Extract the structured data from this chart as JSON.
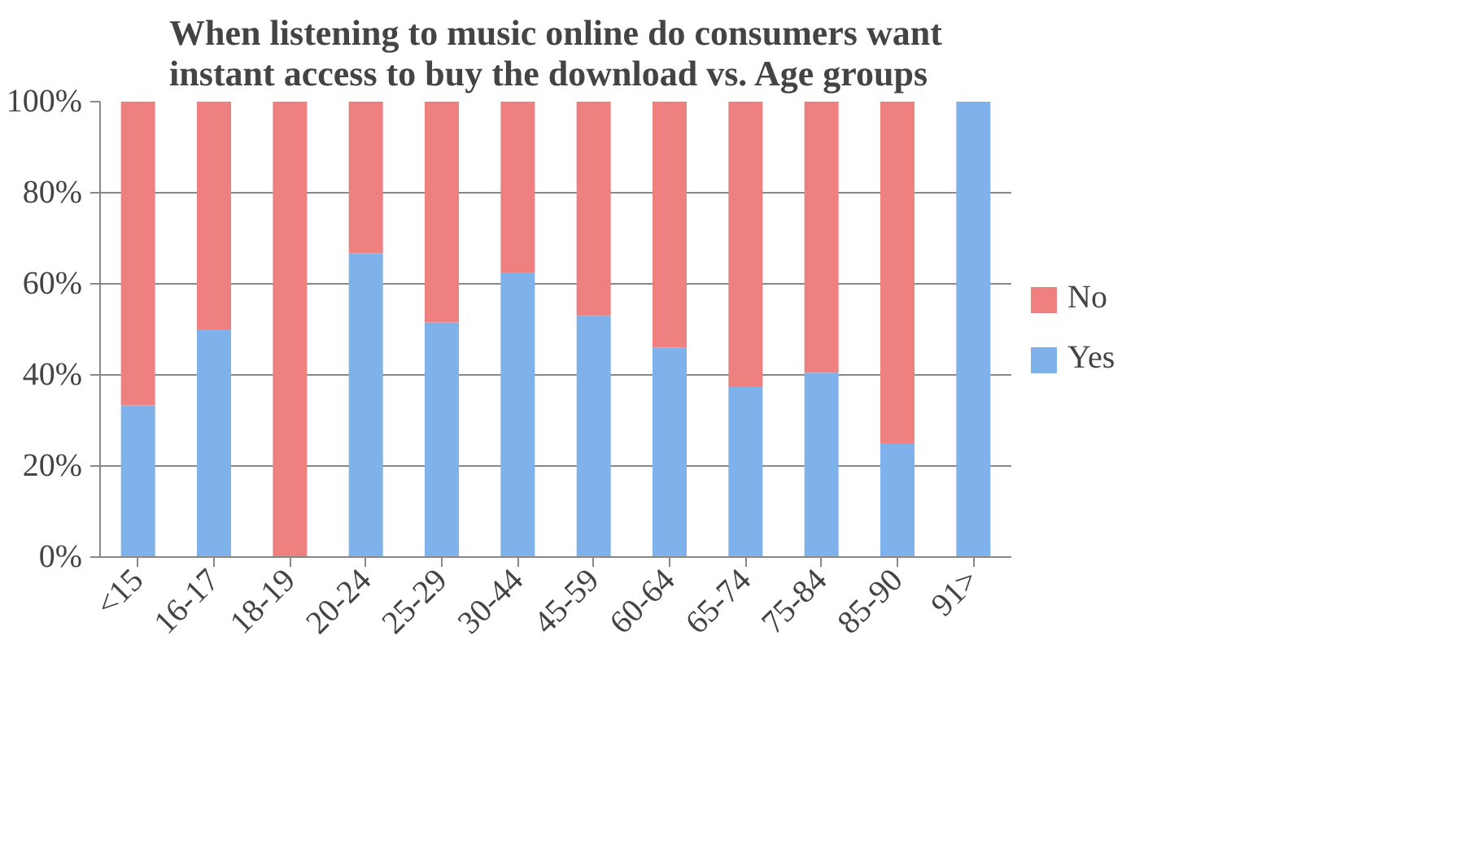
{
  "chart_data": {
    "type": "bar",
    "title": "When listening to music online do consumers want\ninstant access to buy the download vs. Age groups",
    "categories": [
      "<15",
      "16-17",
      "18-19",
      "20-24",
      "25-29",
      "30-44",
      "45-59",
      "60-64",
      "65-74",
      "75-84",
      "85-90",
      "91>"
    ],
    "series": [
      {
        "name": "Yes",
        "color": "#7fb2ea",
        "values": [
          33.3,
          50,
          0,
          66.7,
          51.5,
          62.5,
          53,
          46,
          37.5,
          40.5,
          25,
          100
        ]
      },
      {
        "name": "No",
        "color": "#ee8080",
        "values": [
          66.7,
          50,
          100,
          33.3,
          48.5,
          37.5,
          47,
          54,
          62.5,
          59.5,
          75,
          0
        ]
      }
    ],
    "stacked": true,
    "ylim": [
      0,
      100
    ],
    "yticks": [
      {
        "value": 0,
        "label": "0%"
      },
      {
        "value": 20,
        "label": "20%"
      },
      {
        "value": 40,
        "label": "40%"
      },
      {
        "value": 60,
        "label": "60%"
      },
      {
        "value": 80,
        "label": "80%"
      },
      {
        "value": 100,
        "label": "100%"
      }
    ],
    "grid": "y",
    "legend": "right"
  }
}
